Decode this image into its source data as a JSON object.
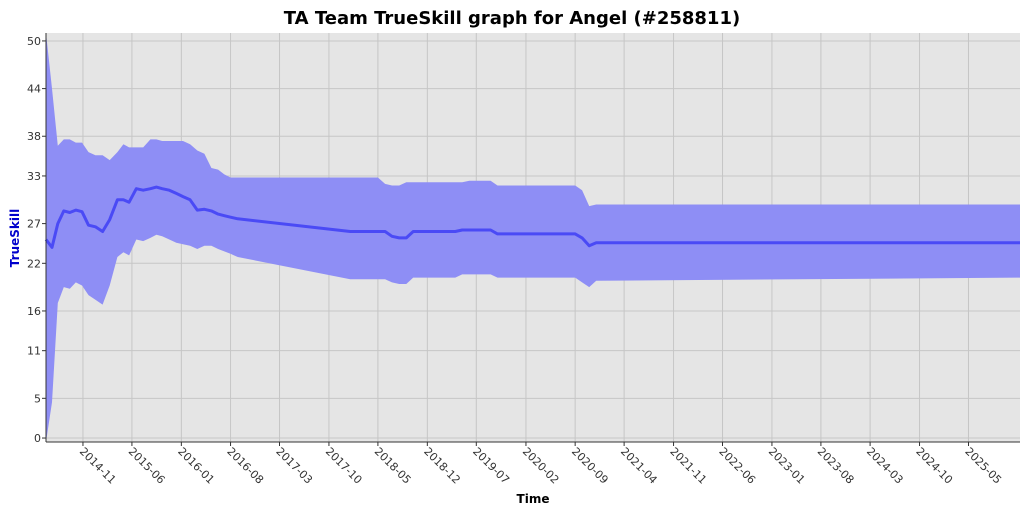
{
  "chart_data": {
    "type": "area",
    "title": "TA Team TrueSkill graph for Angel (#258811)",
    "xlabel": "Time",
    "ylabel": "TrueSkill",
    "y_ticks": [
      0,
      5,
      11,
      16,
      22,
      27,
      33,
      38,
      44,
      50
    ],
    "ylim": [
      -0.5,
      51
    ],
    "x_ticks": [
      "2014-11",
      "2015-06",
      "2016-01",
      "2016-08",
      "2017-03",
      "2017-10",
      "2018-05",
      "2018-12",
      "2019-07",
      "2020-02",
      "2020-09",
      "2021-04",
      "2021-11",
      "2022-06",
      "2023-01",
      "2023-08",
      "2024-03",
      "2024-10",
      "2025-05"
    ],
    "x_range": [
      "2014-05-25",
      "2025-12-10"
    ],
    "grid": true,
    "legend": "none",
    "colors": {
      "band": "#8e8ef5",
      "line": "#4a4af5",
      "plot_bg": "#e5e5e5",
      "grid": "#c6c6c6",
      "ylabel": "#0000cc"
    },
    "series": [
      {
        "type": "line",
        "x": [
          "2014-05-25",
          "2014-06-20",
          "2014-07-15",
          "2014-08-10",
          "2014-09-05",
          "2014-10-01",
          "2014-10-28",
          "2014-11-25",
          "2014-12-25",
          "2015-01-25",
          "2015-02-25",
          "2015-03-30",
          "2015-04-25",
          "2015-05-20",
          "2015-06-20",
          "2015-07-20",
          "2015-08-20",
          "2015-09-15",
          "2015-10-10",
          "2015-11-10",
          "2015-12-10",
          "2016-01-08",
          "2016-02-08",
          "2016-03-10",
          "2016-04-10",
          "2016-05-10",
          "2016-06-08",
          "2016-07-05",
          "2016-08-01",
          "2016-09-01",
          "2018-01-01",
          "2018-06-01",
          "2018-07-01",
          "2018-08-01",
          "2018-09-01",
          "2018-10-01",
          "2019-04-01",
          "2019-05-01",
          "2019-09-01",
          "2019-10-01",
          "2020-09-01",
          "2020-10-01",
          "2020-11-01",
          "2020-12-01",
          "2021-01-01",
          "2025-12-10"
        ],
        "y": [
          25,
          24,
          27,
          28.6,
          28.4,
          28.7,
          28.5,
          26.8,
          26.6,
          26,
          27.5,
          30,
          30,
          29.7,
          31.4,
          31.2,
          31.4,
          31.6,
          31.4,
          31.2,
          30.8,
          30.4,
          30,
          28.7,
          28.8,
          28.6,
          28.2,
          28,
          27.8,
          27.6,
          26,
          26,
          25.4,
          25.2,
          25.2,
          26,
          26,
          26.2,
          26.2,
          25.7,
          25.7,
          25.2,
          24.2,
          24.6,
          24.6,
          24.6
        ]
      },
      {
        "type": "band_upper",
        "x": [
          "2014-05-25",
          "2014-06-20",
          "2014-07-15",
          "2014-08-10",
          "2014-09-05",
          "2014-10-01",
          "2014-10-28",
          "2014-11-25",
          "2014-12-25",
          "2015-01-25",
          "2015-02-25",
          "2015-03-30",
          "2015-04-25",
          "2015-05-20",
          "2015-06-20",
          "2015-07-20",
          "2015-08-20",
          "2015-09-15",
          "2015-10-10",
          "2015-11-10",
          "2015-12-10",
          "2016-01-08",
          "2016-02-08",
          "2016-03-10",
          "2016-04-10",
          "2016-05-10",
          "2016-06-08",
          "2016-07-05",
          "2016-08-01",
          "2018-05-01",
          "2018-06-01",
          "2018-07-01",
          "2018-08-01",
          "2018-09-01",
          "2019-05-01",
          "2019-06-01",
          "2019-09-01",
          "2019-10-01",
          "2020-09-01",
          "2020-10-01",
          "2020-11-01",
          "2020-12-01",
          "2025-12-10"
        ],
        "y": [
          51,
          44,
          36.8,
          37.6,
          37.6,
          37.2,
          37.2,
          36,
          35.6,
          35.6,
          35,
          36,
          37,
          36.6,
          36.6,
          36.6,
          37.6,
          37.6,
          37.4,
          37.4,
          37.4,
          37.4,
          37,
          36.2,
          35.8,
          34,
          33.8,
          33.2,
          32.8,
          32.8,
          32,
          31.8,
          31.8,
          32.2,
          32.2,
          32.4,
          32.4,
          31.8,
          31.8,
          31.2,
          29.2,
          29.4,
          29.4
        ]
      },
      {
        "type": "band_lower",
        "x": [
          "2014-05-25",
          "2014-06-20",
          "2014-07-15",
          "2014-08-10",
          "2014-09-05",
          "2014-10-01",
          "2014-10-28",
          "2014-11-25",
          "2014-12-25",
          "2015-01-25",
          "2015-02-25",
          "2015-03-30",
          "2015-04-25",
          "2015-05-20",
          "2015-06-20",
          "2015-07-20",
          "2015-08-20",
          "2015-09-15",
          "2015-10-10",
          "2015-11-10",
          "2015-12-10",
          "2016-01-08",
          "2016-02-08",
          "2016-03-10",
          "2016-04-10",
          "2016-05-10",
          "2016-06-08",
          "2016-07-05",
          "2016-08-01",
          "2016-09-01",
          "2018-01-01",
          "2018-06-01",
          "2018-07-01",
          "2018-08-01",
          "2018-09-01",
          "2018-10-01",
          "2019-04-01",
          "2019-05-01",
          "2019-09-01",
          "2019-10-01",
          "2020-09-01",
          "2020-10-01",
          "2020-11-01",
          "2020-12-01",
          "2025-12-10"
        ],
        "y": [
          -0.5,
          4.5,
          17,
          19,
          18.8,
          19.6,
          19.2,
          18,
          17.4,
          16.8,
          19.2,
          22.8,
          23.4,
          23,
          25,
          24.8,
          25.2,
          25.6,
          25.4,
          25,
          24.6,
          24.4,
          24.2,
          23.8,
          24.2,
          24.2,
          23.8,
          23.5,
          23.2,
          22.8,
          20,
          20,
          19.6,
          19.4,
          19.4,
          20.2,
          20.2,
          20.6,
          20.6,
          20.2,
          20.2,
          19.6,
          19,
          19.8,
          20.2
        ]
      }
    ]
  }
}
